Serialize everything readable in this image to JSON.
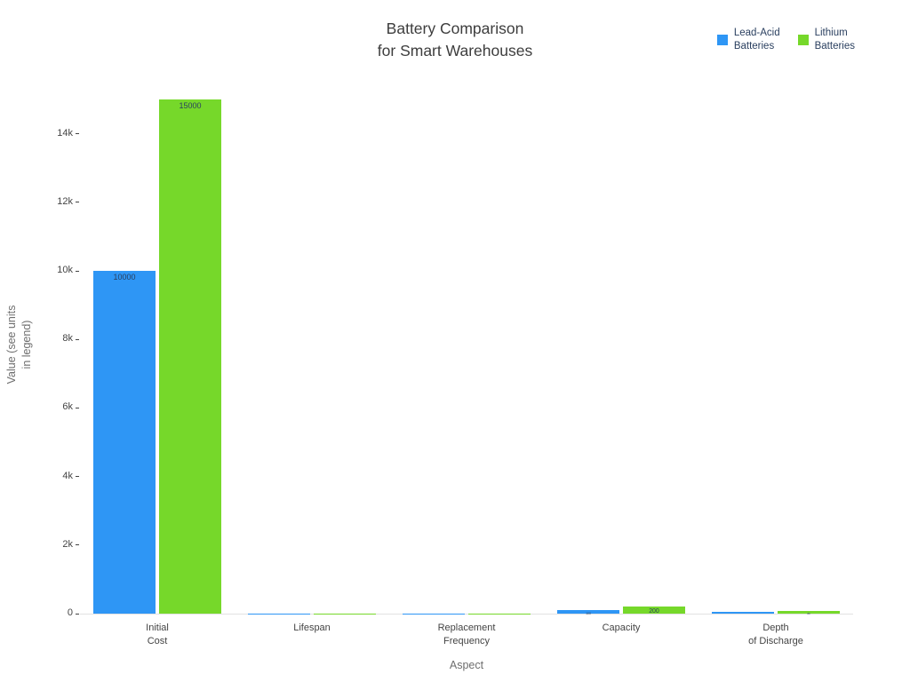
{
  "chart_data": {
    "type": "bar",
    "title": "Battery Comparison\nfor Smart Warehouses",
    "xlabel": "Aspect",
    "ylabel": "Value (see units\nin legend)",
    "categories": [
      "Initial\nCost",
      "Lifespan",
      "Replacement\nFrequency",
      "Capacity",
      "Depth\nof Discharge"
    ],
    "series": [
      {
        "name": "Lead-Acid\nBatteries",
        "color": "#2e96f5",
        "values": [
          10000,
          3,
          5,
          100,
          50
        ]
      },
      {
        "name": "Lithium\nBatteries",
        "color": "#76d82a",
        "values": [
          15000,
          10,
          1,
          200,
          80
        ]
      }
    ],
    "bar_labels_visible": [
      "10000",
      "15000",
      "100"
    ],
    "y_ticks": {
      "values": [
        0,
        2000,
        4000,
        6000,
        8000,
        10000,
        12000,
        14000
      ],
      "labels": [
        "0",
        "2k",
        "4k",
        "6k",
        "8k",
        "10k",
        "12k",
        "14k"
      ]
    },
    "ylim": [
      0,
      15700
    ],
    "grid": false,
    "legend_position": "top-right"
  }
}
